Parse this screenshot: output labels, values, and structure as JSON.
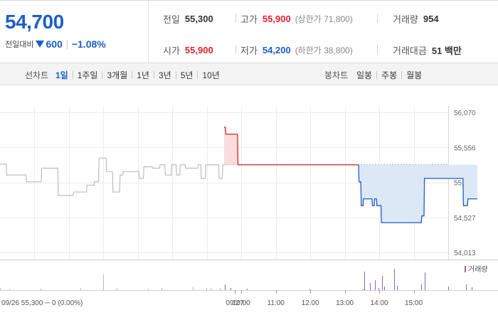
{
  "summary": {
    "price": "54,700",
    "change_label": "전일대비",
    "change_value": "600",
    "change_percent": "−1.08%",
    "change_direction": "down",
    "prev_close_label": "전일",
    "prev_close": "55,300",
    "high_label": "고가",
    "high": "55,900",
    "upper_limit": "(상한가 71,800)",
    "volume_label": "거래량",
    "volume": "954",
    "open_label": "시가",
    "open": "55,900",
    "low_label": "저가",
    "low": "54,200",
    "lower_limit": "(하한가 38,800)",
    "turnover_label": "거래대금",
    "turnover": "51 백만"
  },
  "tabs": {
    "line_label": "선차트",
    "line_periods": [
      {
        "label": "1일",
        "active": true
      },
      {
        "label": "1주일",
        "active": false
      },
      {
        "label": "3개월",
        "active": false
      },
      {
        "label": "1년",
        "active": false
      },
      {
        "label": "3년",
        "active": false
      },
      {
        "label": "5년",
        "active": false
      },
      {
        "label": "10년",
        "active": false
      }
    ],
    "candle_label": "봉차트",
    "candle_periods": [
      {
        "label": "일봉",
        "active": false
      },
      {
        "label": "주봉",
        "active": false
      },
      {
        "label": "월봉",
        "active": false
      }
    ]
  },
  "colors": {
    "up": "#e0202b",
    "down": "#1d5ec8",
    "prev_day_line": "#bdbdbd",
    "up_fill": "#f9dcdc",
    "down_fill": "#dde8f7"
  },
  "chart_data": {
    "type": "line",
    "y_ticks": [
      "56,070",
      "55,556",
      "55,042",
      "54,527",
      "54,013"
    ],
    "ylim": [
      54013,
      56070
    ],
    "baseline": 55300,
    "volume_legend": "거래량",
    "x_ticks": [
      "09/27",
      "10:00",
      "11:00",
      "12:00",
      "13:00",
      "14:00",
      "15:00"
    ],
    "prev_day_summary": "09/26 55,300 ─ 0 (0.00%)",
    "series": [
      {
        "day": "09/26",
        "x": [
          0,
          0.014,
          0.015,
          0.058,
          0.059,
          0.092,
          0.093,
          0.129,
          0.13,
          0.163,
          0.164,
          0.18,
          0.181,
          0.193,
          0.194,
          0.21,
          0.211,
          0.22,
          0.221,
          0.237,
          0.238,
          0.251,
          0.252,
          0.267,
          0.268,
          0.274,
          0.275,
          0.31,
          0.311,
          0.32,
          0.321,
          0.34,
          0.341,
          0.356,
          0.357,
          0.368,
          0.369,
          0.382,
          0.383,
          0.393,
          0.394,
          0.401,
          0.402,
          0.413,
          0.414,
          0.441,
          0.442,
          0.448,
          0.449,
          0.458,
          0.459,
          0.478,
          0.479,
          0.488,
          0.489,
          0.496,
          0.497,
          0.5
        ],
        "values": [
          55310,
          55310,
          55150,
          55150,
          55050,
          55050,
          55250,
          55250,
          54850,
          54850,
          54900,
          54900,
          54900,
          54900,
          55000,
          55000,
          55050,
          55050,
          55400,
          55400,
          55200,
          55200,
          54900,
          54900,
          55150,
          55150,
          55200,
          55200,
          55100,
          55100,
          55270,
          55270,
          55250,
          55250,
          55300,
          55300,
          55150,
          55150,
          55300,
          55300,
          55150,
          55150,
          55300,
          55300,
          55250,
          55250,
          55300,
          55300,
          55100,
          55100,
          55300,
          55300,
          55300,
          55300,
          55100,
          55100,
          55300,
          55300
        ]
      },
      {
        "day": "09/27",
        "x": [
          0,
          0.003,
          0.004,
          0.03,
          0.031,
          0.3,
          0.301,
          0.305,
          0.306,
          0.31,
          0.311,
          0.33,
          0.331,
          0.335,
          0.336,
          0.34,
          0.341,
          0.35,
          0.351,
          0.382,
          0.383,
          0.44,
          0.441,
          0.446,
          0.447,
          0.533,
          0.534,
          0.543,
          0.544,
          0.553,
          0.554,
          0.565
        ],
        "values": [
          55850,
          55850,
          55750,
          55750,
          55300,
          55300,
          55050,
          55050,
          54700,
          54700,
          54800,
          54800,
          54700,
          54700,
          54800,
          54800,
          54700,
          54700,
          54450,
          54450,
          54450,
          54450,
          54550,
          54550,
          55100,
          55100,
          54700,
          54700,
          54800,
          54800,
          54800,
          54800
        ]
      }
    ]
  }
}
